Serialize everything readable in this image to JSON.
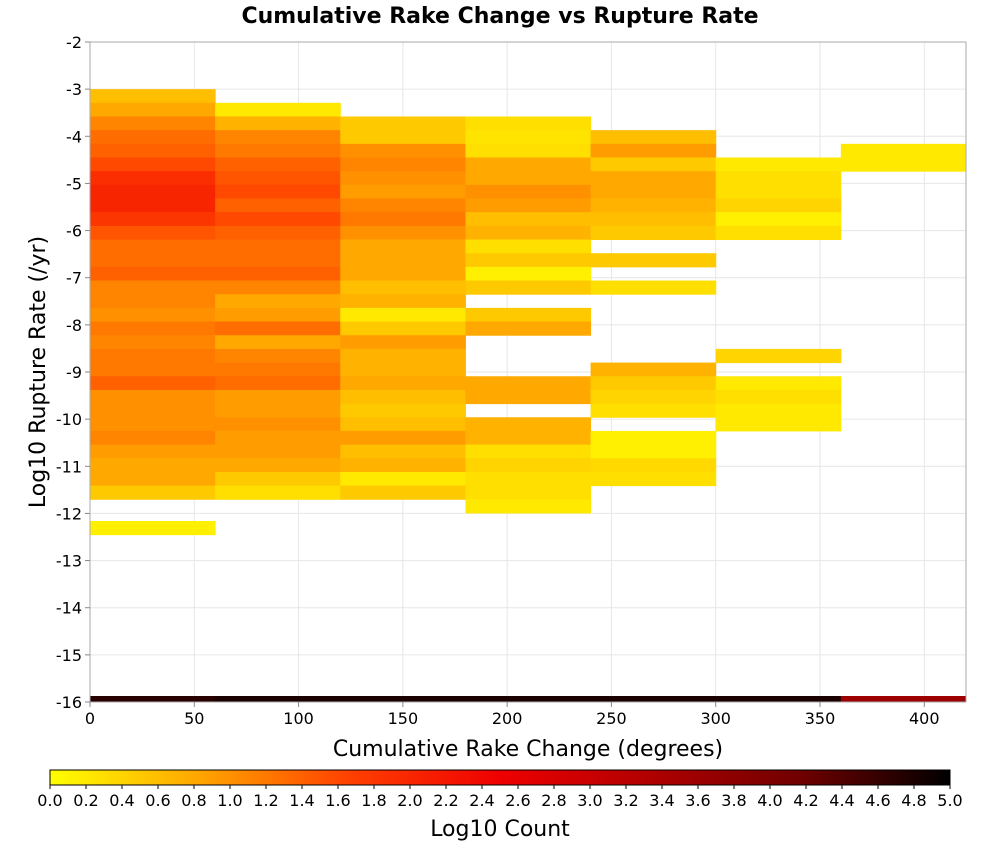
{
  "chart_data": {
    "type": "heatmap",
    "title": "Cumulative Rake Change vs Rupture Rate",
    "xlabel": "Cumulative Rake Change (degrees)",
    "ylabel": "Log10 Rupture Rate (/yr)",
    "xlim": [
      0,
      420
    ],
    "ylim": [
      -16,
      -2
    ],
    "x_ticks": [
      "0",
      "50",
      "100",
      "150",
      "200",
      "250",
      "300",
      "350",
      "400"
    ],
    "y_ticks": [
      "-2",
      "-3",
      "-4",
      "-5",
      "-6",
      "-7",
      "-8",
      "-9",
      "-10",
      "-11",
      "-12",
      "-13",
      "-14",
      "-15",
      "-16"
    ],
    "grid": true,
    "x_bin_edges": [
      0,
      60,
      120,
      180,
      240,
      300,
      360,
      420
    ],
    "y_bin_size": 0.29,
    "colorbar": {
      "label": "Log10 Count",
      "range": [
        0.0,
        5.0
      ],
      "ticks": [
        "0.0",
        "0.2",
        "0.4",
        "0.6",
        "0.8",
        "1.0",
        "1.2",
        "1.4",
        "1.6",
        "1.8",
        "2.0",
        "2.2",
        "2.4",
        "2.6",
        "2.8",
        "3.0",
        "3.2",
        "3.4",
        "3.6",
        "3.8",
        "4.0",
        "4.2",
        "4.4",
        "4.6",
        "4.8",
        "5.0"
      ],
      "colors": [
        "#ffff00",
        "#ffa500",
        "#ff4000",
        "#ee0000",
        "#b00000",
        "#700000",
        "#000000"
      ]
    },
    "columns": [
      {
        "x_range": [
          0,
          60
        ],
        "cells": [
          [
            -3.0,
            0.6
          ],
          [
            -3.29,
            0.8
          ],
          [
            -3.58,
            1.1
          ],
          [
            -3.87,
            1.3
          ],
          [
            -4.16,
            1.4
          ],
          [
            -4.45,
            1.6
          ],
          [
            -4.74,
            1.9
          ],
          [
            -5.03,
            2.0
          ],
          [
            -5.32,
            2.0
          ],
          [
            -5.61,
            1.8
          ],
          [
            -5.9,
            1.5
          ],
          [
            -6.19,
            1.3
          ],
          [
            -6.48,
            1.3
          ],
          [
            -6.77,
            1.4
          ],
          [
            -7.06,
            1.1
          ],
          [
            -7.35,
            1.1
          ],
          [
            -7.64,
            1.0
          ],
          [
            -7.93,
            1.2
          ],
          [
            -8.22,
            1.1
          ],
          [
            -8.51,
            1.2
          ],
          [
            -8.8,
            1.2
          ],
          [
            -9.09,
            1.4
          ],
          [
            -9.38,
            1.0
          ],
          [
            -9.67,
            1.0
          ],
          [
            -9.96,
            1.0
          ],
          [
            -10.25,
            1.1
          ],
          [
            -10.54,
            0.9
          ],
          [
            -10.83,
            0.8
          ],
          [
            -11.12,
            0.8
          ],
          [
            -11.41,
            0.5
          ],
          [
            -12.16,
            0.15
          ],
          [
            -16.0,
            4.7
          ]
        ]
      },
      {
        "x_range": [
          60,
          120
        ],
        "cells": [
          [
            -3.29,
            0.2
          ],
          [
            -3.58,
            0.7
          ],
          [
            -3.87,
            1.1
          ],
          [
            -4.16,
            1.2
          ],
          [
            -4.45,
            1.4
          ],
          [
            -4.74,
            1.5
          ],
          [
            -5.03,
            1.6
          ],
          [
            -5.32,
            1.4
          ],
          [
            -5.61,
            1.6
          ],
          [
            -5.9,
            1.4
          ],
          [
            -6.19,
            1.3
          ],
          [
            -6.48,
            1.3
          ],
          [
            -6.77,
            1.4
          ],
          [
            -7.06,
            1.1
          ],
          [
            -7.35,
            0.8
          ],
          [
            -7.64,
            0.9
          ],
          [
            -7.93,
            1.3
          ],
          [
            -8.22,
            0.8
          ],
          [
            -8.51,
            1.1
          ],
          [
            -8.8,
            1.2
          ],
          [
            -9.09,
            1.3
          ],
          [
            -9.38,
            0.9
          ],
          [
            -9.67,
            0.9
          ],
          [
            -9.96,
            1.0
          ],
          [
            -10.25,
            0.9
          ],
          [
            -10.54,
            0.9
          ],
          [
            -10.83,
            0.8
          ],
          [
            -11.12,
            0.5
          ],
          [
            -11.41,
            0.3
          ],
          [
            -16.0,
            4.8
          ]
        ]
      },
      {
        "x_range": [
          120,
          180
        ],
        "cells": [
          [
            -3.58,
            0.5
          ],
          [
            -3.87,
            0.5
          ],
          [
            -4.16,
            1.0
          ],
          [
            -4.45,
            1.1
          ],
          [
            -4.74,
            1.0
          ],
          [
            -5.03,
            0.9
          ],
          [
            -5.32,
            1.1
          ],
          [
            -5.61,
            1.2
          ],
          [
            -5.9,
            1.0
          ],
          [
            -6.19,
            0.8
          ],
          [
            -6.48,
            0.8
          ],
          [
            -6.77,
            0.8
          ],
          [
            -7.06,
            0.6
          ],
          [
            -7.35,
            0.7
          ],
          [
            -7.64,
            0.2
          ],
          [
            -7.93,
            0.5
          ],
          [
            -8.22,
            0.9
          ],
          [
            -8.51,
            0.7
          ],
          [
            -8.8,
            0.7
          ],
          [
            -9.09,
            0.8
          ],
          [
            -9.38,
            0.6
          ],
          [
            -9.67,
            0.5
          ],
          [
            -9.96,
            0.6
          ],
          [
            -10.25,
            0.9
          ],
          [
            -10.54,
            0.6
          ],
          [
            -10.83,
            0.7
          ],
          [
            -11.12,
            0.2
          ],
          [
            -11.41,
            0.5
          ],
          [
            -16.0,
            4.8
          ]
        ]
      },
      {
        "x_range": [
          180,
          240
        ],
        "cells": [
          [
            -3.58,
            0.3
          ],
          [
            -3.87,
            0.25
          ],
          [
            -4.16,
            0.3
          ],
          [
            -4.45,
            0.8
          ],
          [
            -4.74,
            0.8
          ],
          [
            -5.03,
            1.0
          ],
          [
            -5.32,
            0.9
          ],
          [
            -5.61,
            0.6
          ],
          [
            -5.9,
            0.7
          ],
          [
            -6.19,
            0.3
          ],
          [
            -6.48,
            0.5
          ],
          [
            -6.77,
            0.15
          ],
          [
            -7.06,
            0.5
          ],
          [
            -7.64,
            0.5
          ],
          [
            -7.93,
            0.8
          ],
          [
            -9.09,
            0.8
          ],
          [
            -9.38,
            0.8
          ],
          [
            -9.96,
            0.7
          ],
          [
            -10.25,
            0.7
          ],
          [
            -10.54,
            0.3
          ],
          [
            -10.83,
            0.4
          ],
          [
            -11.12,
            0.3
          ],
          [
            -11.41,
            0.3
          ],
          [
            -11.7,
            0.2
          ],
          [
            -16.0,
            4.8
          ]
        ]
      },
      {
        "x_range": [
          240,
          300
        ],
        "cells": [
          [
            -3.87,
            0.6
          ],
          [
            -4.16,
            0.9
          ],
          [
            -4.45,
            0.5
          ],
          [
            -4.74,
            0.8
          ],
          [
            -5.03,
            0.8
          ],
          [
            -5.32,
            0.7
          ],
          [
            -5.61,
            0.6
          ],
          [
            -5.9,
            0.5
          ],
          [
            -6.48,
            0.5
          ],
          [
            -7.06,
            0.3
          ],
          [
            -8.8,
            0.7
          ],
          [
            -9.09,
            0.5
          ],
          [
            -9.38,
            0.4
          ],
          [
            -9.67,
            0.3
          ],
          [
            -10.25,
            0.15
          ],
          [
            -10.54,
            0.15
          ],
          [
            -10.83,
            0.35
          ],
          [
            -11.12,
            0.3
          ],
          [
            -16.0,
            4.8
          ]
        ]
      },
      {
        "x_range": [
          300,
          360
        ],
        "cells": [
          [
            -4.45,
            0.2
          ],
          [
            -4.74,
            0.3
          ],
          [
            -5.03,
            0.3
          ],
          [
            -5.32,
            0.4
          ],
          [
            -5.61,
            0.15
          ],
          [
            -5.9,
            0.3
          ],
          [
            -8.51,
            0.4
          ],
          [
            -9.09,
            0.2
          ],
          [
            -9.38,
            0.3
          ],
          [
            -9.67,
            0.2
          ],
          [
            -9.96,
            0.2
          ],
          [
            -16.0,
            4.8
          ]
        ]
      },
      {
        "x_range": [
          360,
          420
        ],
        "cells": [
          [
            -4.16,
            0.2
          ],
          [
            -4.45,
            0.2
          ],
          [
            -16.0,
            3.6
          ]
        ]
      }
    ]
  }
}
